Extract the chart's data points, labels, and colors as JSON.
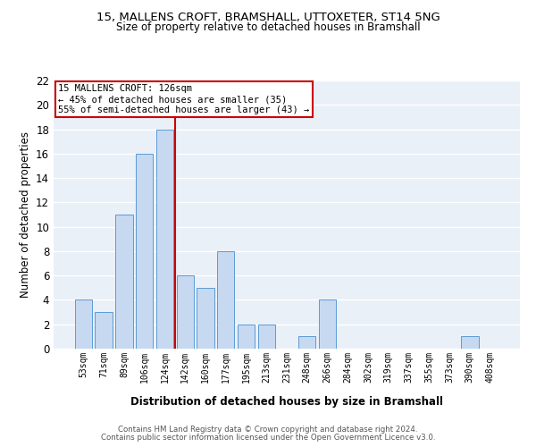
{
  "title1": "15, MALLENS CROFT, BRAMSHALL, UTTOXETER, ST14 5NG",
  "title2": "Size of property relative to detached houses in Bramshall",
  "xlabel": "Distribution of detached houses by size in Bramshall",
  "ylabel": "Number of detached properties",
  "bar_labels": [
    "53sqm",
    "71sqm",
    "89sqm",
    "106sqm",
    "124sqm",
    "142sqm",
    "160sqm",
    "177sqm",
    "195sqm",
    "213sqm",
    "231sqm",
    "248sqm",
    "266sqm",
    "284sqm",
    "302sqm",
    "319sqm",
    "337sqm",
    "355sqm",
    "373sqm",
    "390sqm",
    "408sqm"
  ],
  "bar_values": [
    4,
    3,
    11,
    16,
    18,
    6,
    5,
    8,
    2,
    2,
    0,
    1,
    4,
    0,
    0,
    0,
    0,
    0,
    0,
    1,
    0
  ],
  "bar_color": "#c6d9f0",
  "bar_edgecolor": "#5b9bd5",
  "bg_color": "#eaf0f8",
  "grid_color": "#ffffff",
  "vline_x": 4.52,
  "vline_color": "#cc0000",
  "annotation_text": "15 MALLENS CROFT: 126sqm\n← 45% of detached houses are smaller (35)\n55% of semi-detached houses are larger (43) →",
  "annotation_box_color": "#cc0000",
  "footer1": "Contains HM Land Registry data © Crown copyright and database right 2024.",
  "footer2": "Contains public sector information licensed under the Open Government Licence v3.0.",
  "ylim": [
    0,
    22
  ],
  "yticks": [
    0,
    2,
    4,
    6,
    8,
    10,
    12,
    14,
    16,
    18,
    20,
    22
  ]
}
